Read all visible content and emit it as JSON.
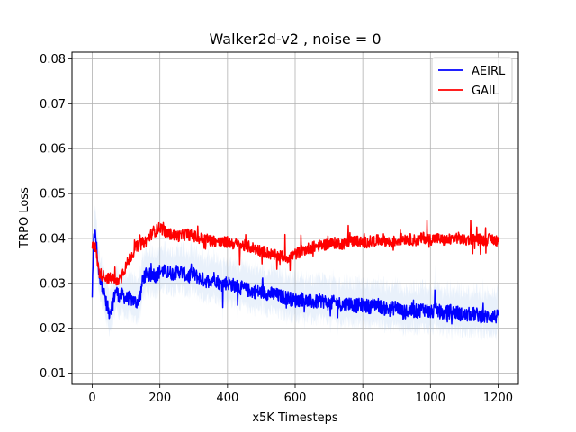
{
  "chart_data": {
    "type": "line",
    "title": "Walker2d-v2 , noise = 0",
    "xlabel": "x5K Timesteps",
    "ylabel": "TRPO Loss",
    "xlim": [
      -60,
      1260
    ],
    "ylim": [
      0.0075,
      0.0815
    ],
    "xticks": [
      0,
      200,
      400,
      600,
      800,
      1000,
      1200
    ],
    "xtick_labels": [
      "0",
      "200",
      "400",
      "600",
      "800",
      "1000",
      "1200"
    ],
    "yticks": [
      0.01,
      0.02,
      0.03,
      0.04,
      0.05,
      0.06,
      0.07,
      0.08
    ],
    "ytick_labels": [
      "0.01",
      "0.02",
      "0.03",
      "0.04",
      "0.05",
      "0.06",
      "0.07",
      "0.08"
    ],
    "grid": true,
    "legend": {
      "position": "top-right"
    },
    "series": [
      {
        "name": "AEIRL",
        "color": "#0000ff",
        "band_color": "#a8c6f0",
        "x": [
          0,
          5,
          10,
          20,
          30,
          40,
          50,
          60,
          70,
          80,
          90,
          100,
          110,
          120,
          130,
          140,
          150,
          160,
          170,
          180,
          190,
          200,
          220,
          240,
          260,
          280,
          300,
          320,
          340,
          360,
          380,
          400,
          420,
          440,
          460,
          480,
          500,
          520,
          540,
          560,
          580,
          600,
          620,
          640,
          660,
          680,
          700,
          720,
          740,
          760,
          780,
          800,
          820,
          840,
          860,
          880,
          900,
          920,
          940,
          960,
          980,
          1000,
          1020,
          1040,
          1060,
          1080,
          1100,
          1120,
          1140,
          1160,
          1180,
          1200
        ],
        "y": [
          0.0275,
          0.0415,
          0.0405,
          0.032,
          0.0295,
          0.026,
          0.0235,
          0.0255,
          0.0285,
          0.027,
          0.0275,
          0.0265,
          0.0268,
          0.0262,
          0.0258,
          0.0265,
          0.031,
          0.0325,
          0.0318,
          0.0322,
          0.0315,
          0.0328,
          0.0325,
          0.0322,
          0.0328,
          0.0315,
          0.032,
          0.031,
          0.0305,
          0.0312,
          0.0298,
          0.0302,
          0.0295,
          0.029,
          0.0285,
          0.0282,
          0.028,
          0.0278,
          0.0275,
          0.027,
          0.0268,
          0.0262,
          0.0265,
          0.026,
          0.0258,
          0.0262,
          0.0255,
          0.0258,
          0.0252,
          0.0256,
          0.025,
          0.0252,
          0.0248,
          0.0255,
          0.0245,
          0.0242,
          0.0248,
          0.0235,
          0.024,
          0.0238,
          0.0244,
          0.0235,
          0.024,
          0.0232,
          0.0238,
          0.0235,
          0.0228,
          0.0232,
          0.023,
          0.0225,
          0.0228,
          0.0225
        ]
      },
      {
        "name": "GAIL",
        "color": "#ff0000",
        "x": [
          0,
          5,
          10,
          20,
          30,
          40,
          50,
          60,
          70,
          80,
          90,
          100,
          110,
          120,
          130,
          140,
          150,
          160,
          170,
          180,
          190,
          200,
          220,
          240,
          260,
          280,
          300,
          320,
          340,
          360,
          380,
          400,
          420,
          440,
          460,
          480,
          500,
          520,
          540,
          560,
          580,
          600,
          620,
          640,
          660,
          680,
          700,
          720,
          740,
          760,
          780,
          800,
          820,
          840,
          860,
          880,
          900,
          920,
          940,
          960,
          980,
          1000,
          1020,
          1040,
          1060,
          1080,
          1100,
          1120,
          1140,
          1160,
          1180,
          1200
        ],
        "y": [
          0.0385,
          0.0395,
          0.0375,
          0.0325,
          0.0318,
          0.0315,
          0.031,
          0.0312,
          0.03,
          0.031,
          0.0325,
          0.0338,
          0.0355,
          0.0368,
          0.038,
          0.0385,
          0.039,
          0.0395,
          0.0405,
          0.0415,
          0.0418,
          0.0425,
          0.0412,
          0.0408,
          0.0405,
          0.041,
          0.0405,
          0.04,
          0.0398,
          0.0395,
          0.039,
          0.0392,
          0.0388,
          0.0385,
          0.0382,
          0.0378,
          0.0372,
          0.0368,
          0.0362,
          0.036,
          0.0358,
          0.0365,
          0.0372,
          0.0378,
          0.0382,
          0.0385,
          0.0388,
          0.039,
          0.0388,
          0.0392,
          0.0395,
          0.039,
          0.0393,
          0.0395,
          0.0398,
          0.039,
          0.0395,
          0.04,
          0.0398,
          0.0395,
          0.0402,
          0.0398,
          0.04,
          0.0395,
          0.0398,
          0.0402,
          0.0395,
          0.04,
          0.0398,
          0.0396,
          0.0399,
          0.0395
        ]
      }
    ]
  }
}
